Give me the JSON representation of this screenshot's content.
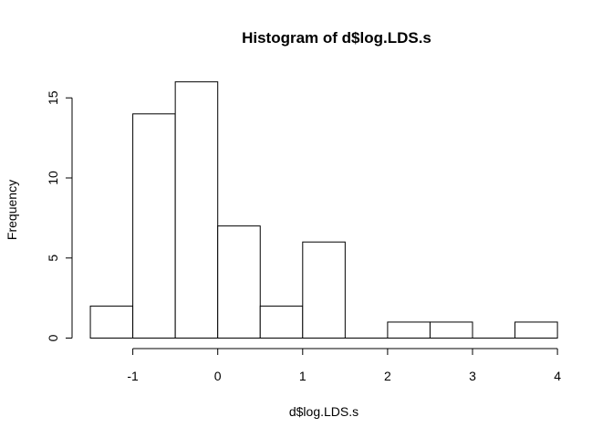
{
  "chart_data": {
    "type": "histogram",
    "title": "Histogram of d$log.LDS.s",
    "xlabel": "d$log.LDS.s",
    "ylabel": "Frequency",
    "xlim": [
      -1.5,
      4
    ],
    "ylim": [
      0,
      16
    ],
    "x_axis_range": [
      -1,
      4
    ],
    "y_axis_range": [
      0,
      15
    ],
    "x_ticks": [
      -1,
      0,
      1,
      2,
      3,
      4
    ],
    "y_ticks": [
      0,
      5,
      10,
      15
    ],
    "bin_width": 0.5,
    "bins": [
      {
        "start": -1.5,
        "end": -1.0,
        "count": 2
      },
      {
        "start": -1.0,
        "end": -0.5,
        "count": 14
      },
      {
        "start": -0.5,
        "end": 0.0,
        "count": 16
      },
      {
        "start": 0.0,
        "end": 0.5,
        "count": 7
      },
      {
        "start": 0.5,
        "end": 1.0,
        "count": 2
      },
      {
        "start": 1.0,
        "end": 1.5,
        "count": 6
      },
      {
        "start": 1.5,
        "end": 2.0,
        "count": 0
      },
      {
        "start": 2.0,
        "end": 2.5,
        "count": 1
      },
      {
        "start": 2.5,
        "end": 3.0,
        "count": 1
      },
      {
        "start": 3.0,
        "end": 3.5,
        "count": 0
      },
      {
        "start": 3.5,
        "end": 4.0,
        "count": 1
      }
    ],
    "grid": false,
    "colors": {
      "bar_fill": "#ffffff",
      "bar_stroke": "#000000"
    }
  }
}
